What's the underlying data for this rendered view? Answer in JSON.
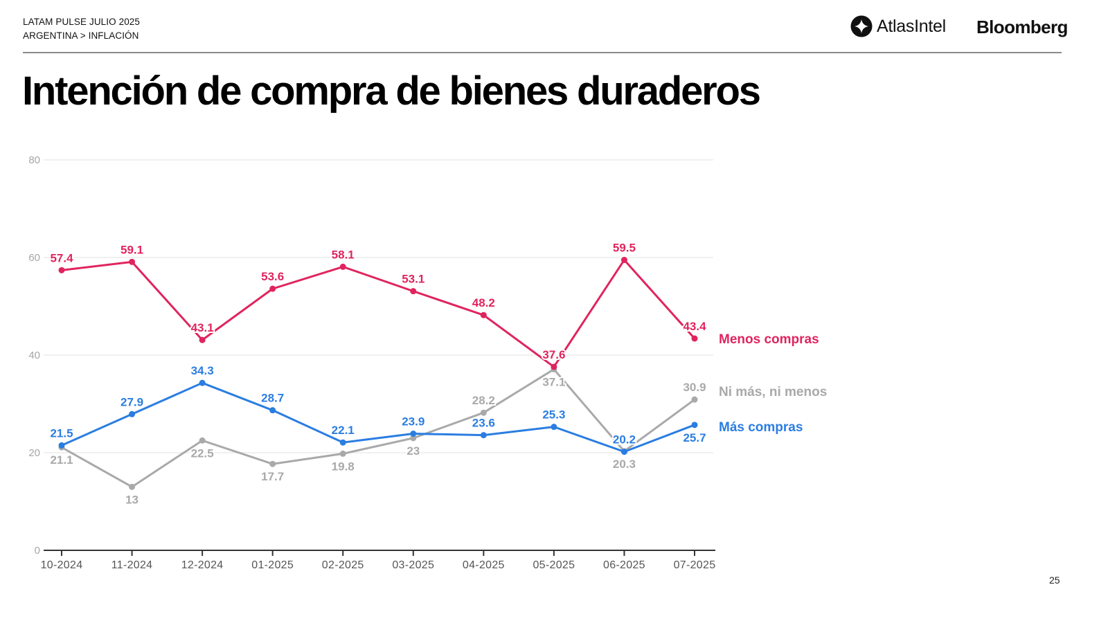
{
  "header": {
    "line1": "LATAM PULSE JULIO 2025",
    "line2": "ARGENTINA > INFLACIÓN",
    "logo_atlas": "AtlasIntel",
    "logo_bloomberg": "Bloomberg"
  },
  "title": "Intención de compra de bienes duraderos",
  "page_number": "25",
  "chart_data": {
    "type": "line",
    "title": "Intención de compra de bienes duraderos",
    "xlabel": "",
    "ylabel": "",
    "ylim": [
      0,
      80
    ],
    "yticks": [
      0,
      20,
      40,
      60,
      80
    ],
    "ytick_labels": [
      "0",
      "20",
      "40",
      "60",
      "80"
    ],
    "grid": true,
    "legend_position": "right (inline at line ends)",
    "x": [
      "10-2024",
      "11-2024",
      "12-2024",
      "01-2025",
      "02-2025",
      "03-2025",
      "04-2025",
      "05-2025",
      "06-2025",
      "07-2025"
    ],
    "series": [
      {
        "name": "Menos compras",
        "color": "#e0245e",
        "values": [
          57.4,
          59.1,
          43.1,
          53.6,
          58.1,
          53.1,
          48.2,
          37.6,
          59.5,
          43.4
        ],
        "labels": [
          "57.4",
          "59.1",
          "43.1",
          "53.6",
          "58.1",
          "53.1",
          "48.2",
          "37.6",
          "59.5",
          "43.4"
        ],
        "label_side": [
          "above",
          "above",
          "above",
          "above",
          "above",
          "above",
          "above",
          "above",
          "above",
          "above"
        ]
      },
      {
        "name": "Ni más, ni menos",
        "color": "#a9a9a9",
        "values": [
          21.1,
          13,
          22.5,
          17.7,
          19.8,
          23,
          28.2,
          37.1,
          20.3,
          30.9
        ],
        "labels": [
          "21.1",
          "13",
          "22.5",
          "17.7",
          "19.8",
          "23",
          "28.2",
          "37.1",
          "20.3",
          "30.9"
        ],
        "label_side": [
          "below",
          "below",
          "below",
          "below",
          "below",
          "below",
          "above",
          "below",
          "below",
          "above"
        ]
      },
      {
        "name": "Más compras",
        "color": "#2a7de1",
        "values": [
          21.5,
          27.9,
          34.3,
          28.7,
          22.1,
          23.9,
          23.6,
          25.3,
          20.2,
          25.7
        ],
        "labels": [
          "21.5",
          "27.9",
          "34.3",
          "28.7",
          "22.1",
          "23.9",
          "23.6",
          "25.3",
          "20.2",
          "25.7"
        ],
        "label_side": [
          "above",
          "above",
          "above",
          "above",
          "above",
          "above",
          "above",
          "above",
          "above",
          "below"
        ]
      }
    ]
  }
}
